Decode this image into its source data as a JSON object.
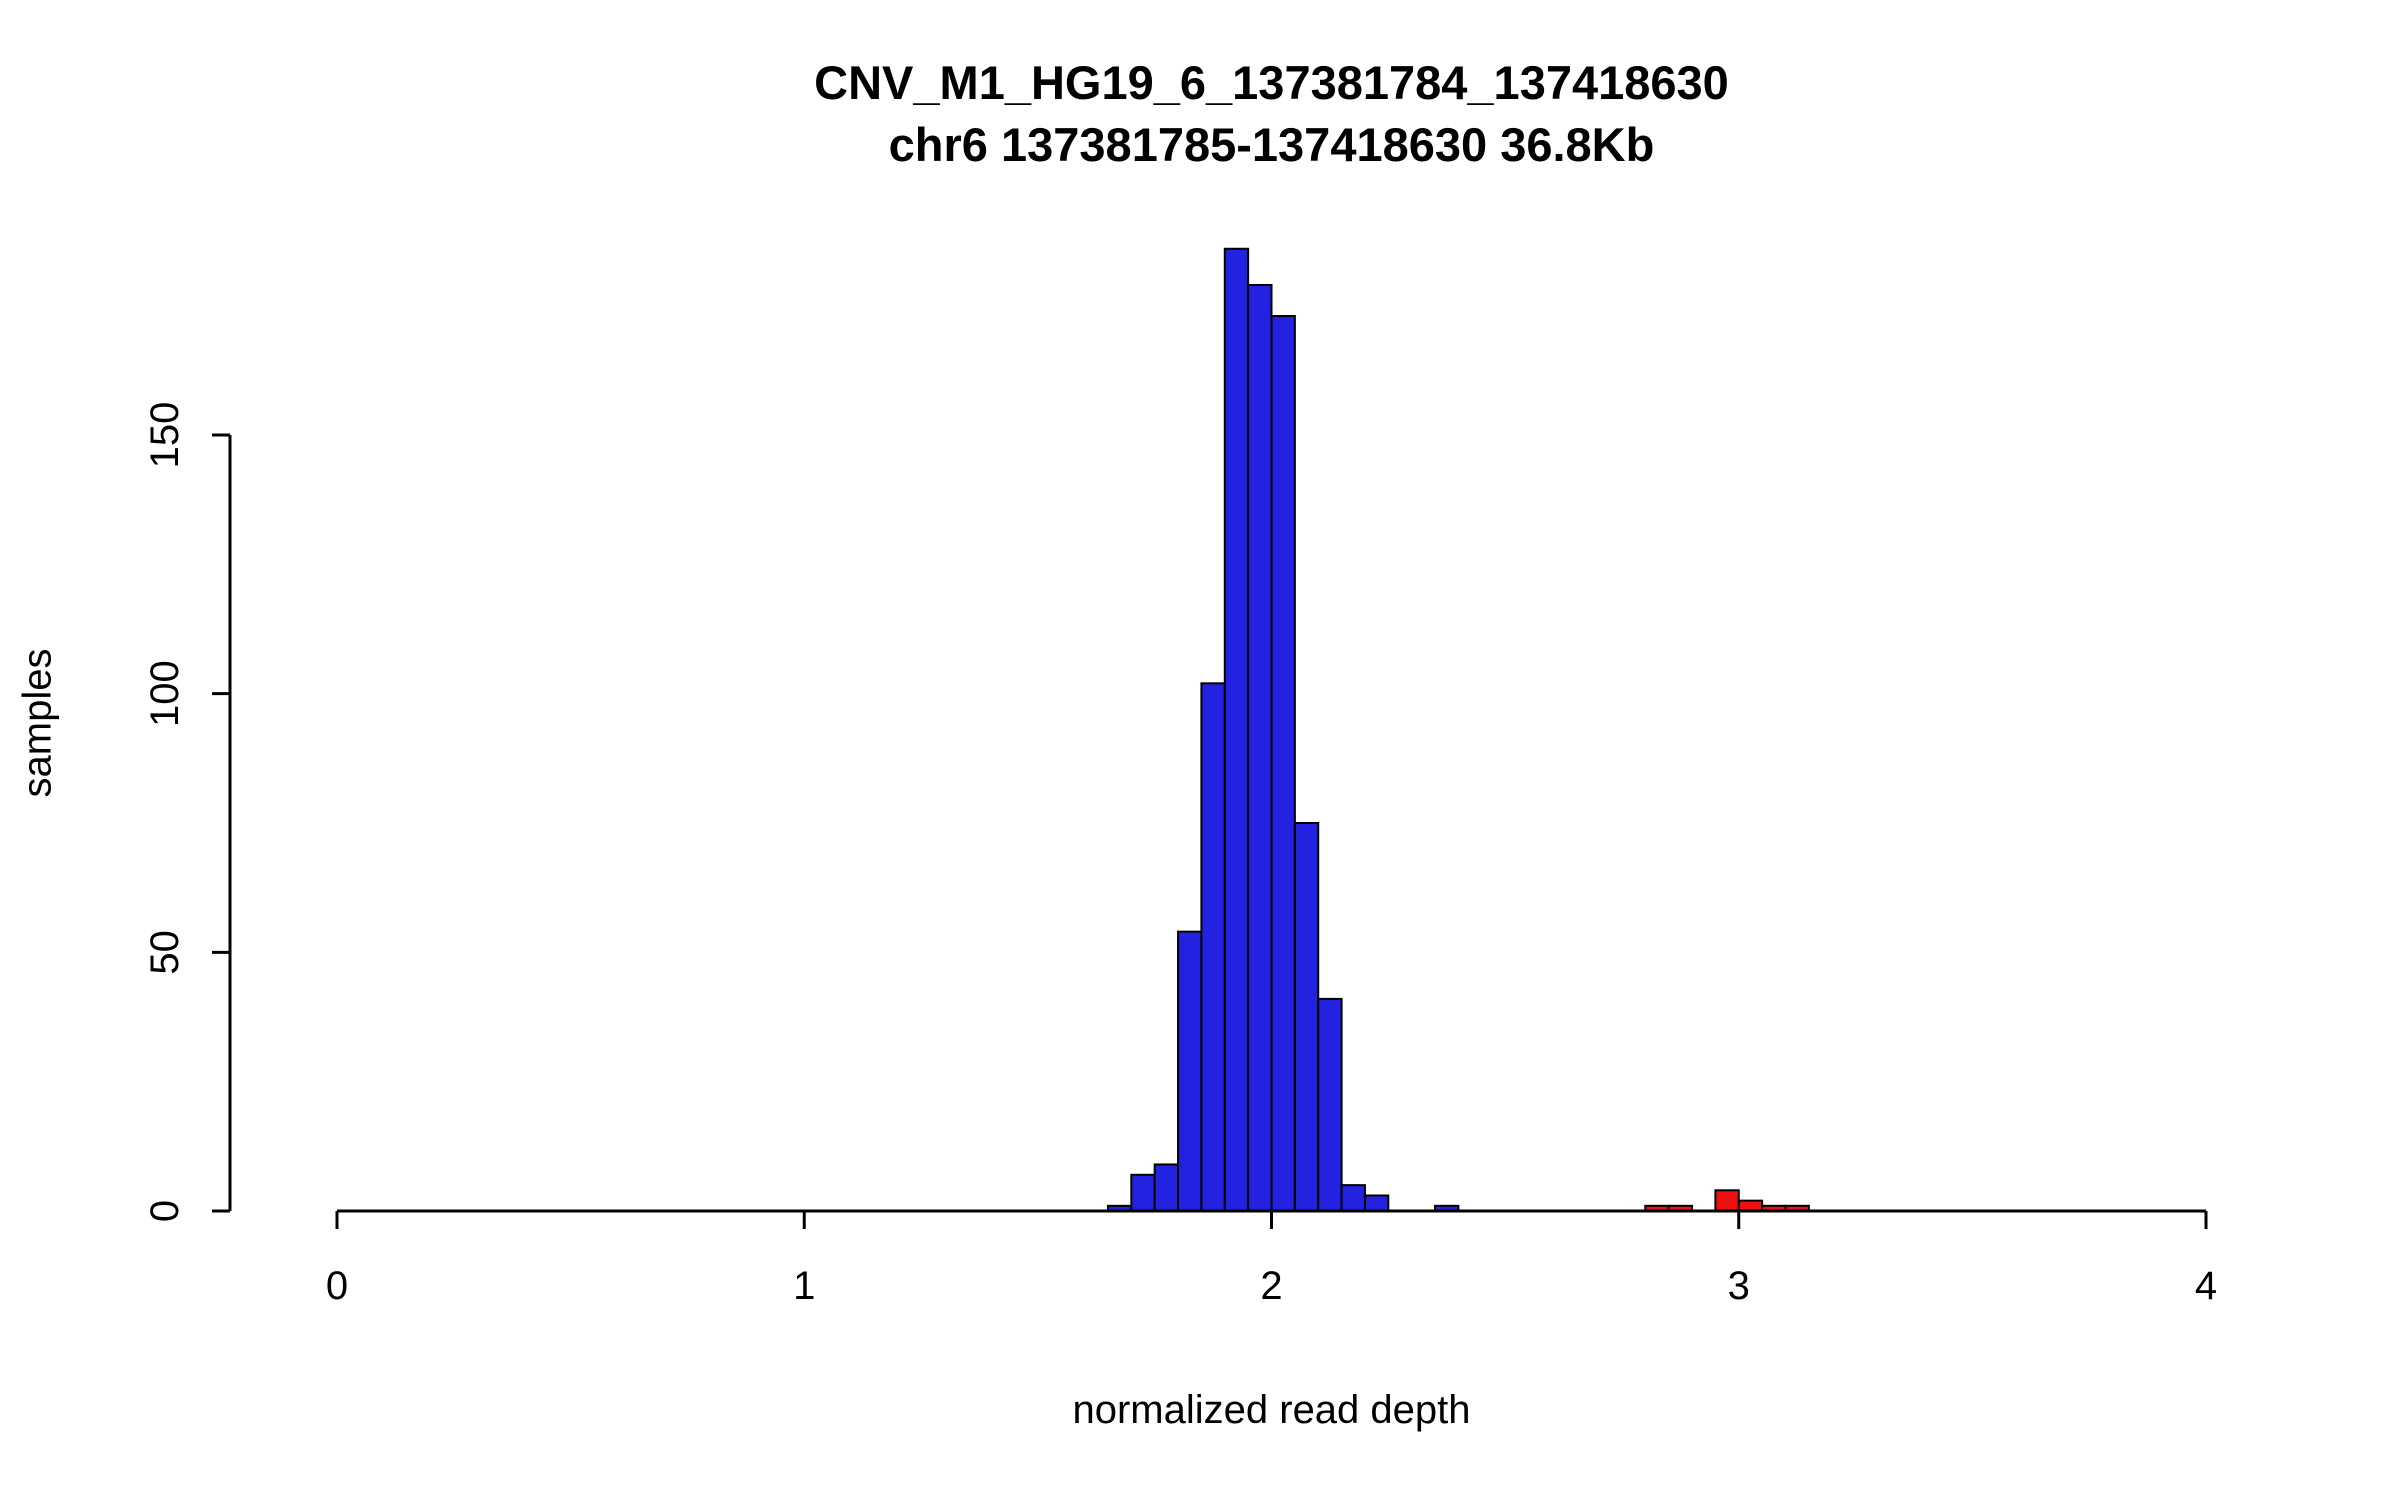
{
  "title": {
    "line1": "CNV_M1_HG19_6_137381784_137418630",
    "line2": "chr6 137381785-137418630 36.8Kb"
  },
  "chart_data": {
    "type": "bar",
    "subtype": "histogram",
    "title": "CNV_M1_HG19_6_137381784_137418630",
    "subtitle": "chr6 137381785-137418630 36.8Kb",
    "xlabel": "normalized read depth",
    "ylabel": "samples",
    "xlim": [
      0,
      4
    ],
    "ylim": [
      0,
      190
    ],
    "x_ticks": [
      0,
      1,
      2,
      3,
      4
    ],
    "y_ticks": [
      0,
      50,
      100,
      150
    ],
    "bin_width": 0.05,
    "grid": false,
    "legend": "none",
    "colors": {
      "normal_fill": "#2222e0",
      "duplication_fill": "#ee1111",
      "bar_stroke": "#000000",
      "axis": "#000000"
    },
    "bars": [
      {
        "x": 1.65,
        "count": 1,
        "color": "#2222e0"
      },
      {
        "x": 1.7,
        "count": 7,
        "color": "#2222e0"
      },
      {
        "x": 1.75,
        "count": 9,
        "color": "#2222e0"
      },
      {
        "x": 1.8,
        "count": 54,
        "color": "#2222e0"
      },
      {
        "x": 1.85,
        "count": 102,
        "color": "#2222e0"
      },
      {
        "x": 1.9,
        "count": 186,
        "color": "#2222e0"
      },
      {
        "x": 1.95,
        "count": 179,
        "color": "#2222e0"
      },
      {
        "x": 2.0,
        "count": 173,
        "color": "#2222e0"
      },
      {
        "x": 2.05,
        "count": 75,
        "color": "#2222e0"
      },
      {
        "x": 2.1,
        "count": 41,
        "color": "#2222e0"
      },
      {
        "x": 2.15,
        "count": 5,
        "color": "#2222e0"
      },
      {
        "x": 2.2,
        "count": 3,
        "color": "#2222e0"
      },
      {
        "x": 2.35,
        "count": 1,
        "color": "#2222e0"
      },
      {
        "x": 2.8,
        "count": 1,
        "color": "#ee1111"
      },
      {
        "x": 2.85,
        "count": 1,
        "color": "#ee1111"
      },
      {
        "x": 2.95,
        "count": 4,
        "color": "#ee1111"
      },
      {
        "x": 3.0,
        "count": 2,
        "color": "#ee1111"
      },
      {
        "x": 3.05,
        "count": 1,
        "color": "#ee1111"
      },
      {
        "x": 3.1,
        "count": 1,
        "color": "#ee1111"
      }
    ]
  }
}
